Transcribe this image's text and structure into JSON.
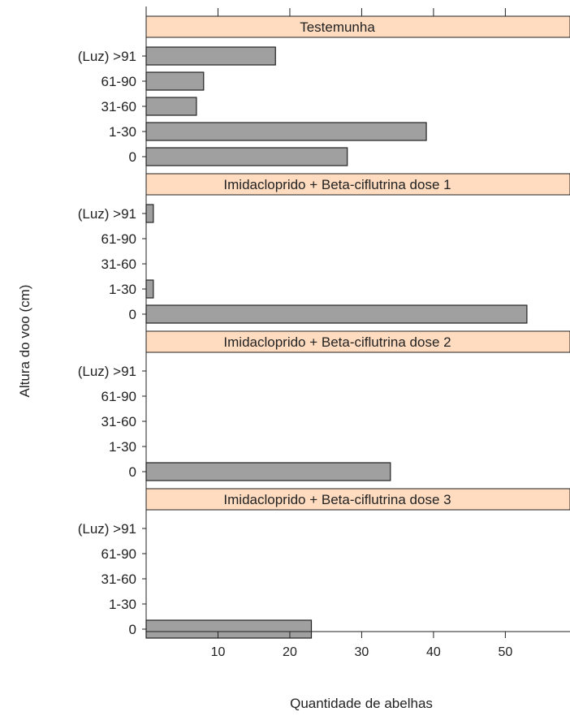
{
  "chart_data": {
    "type": "bar",
    "orientation": "horizontal",
    "xlabel": "Quantidade de abelhas",
    "ylabel": "Altura do voo (cm)",
    "xlim": [
      0,
      59
    ],
    "xticks": [
      10,
      20,
      30,
      40,
      50
    ],
    "grid": false,
    "legend": "none",
    "categories": [
      "(Luz) >91",
      "61-90",
      "31-60",
      "1-30",
      "0"
    ],
    "panels": [
      {
        "title": "Testemunha",
        "values": [
          18,
          8,
          7,
          39,
          28
        ]
      },
      {
        "title": "Imidacloprido + Beta-ciflutrina dose 1",
        "values": [
          1,
          0,
          0,
          1,
          53
        ]
      },
      {
        "title": "Imidacloprido + Beta-ciflutrina dose 2",
        "values": [
          0,
          0,
          0,
          0,
          34
        ]
      },
      {
        "title": "Imidacloprido + Beta-ciflutrina dose 3",
        "values": [
          0,
          0,
          0,
          0,
          23
        ]
      }
    ],
    "colors": {
      "bar_fill": "#a0a0a0",
      "bar_stroke": "#222222",
      "strip_fill": "#ffdcc0",
      "axis": "#222222"
    }
  }
}
